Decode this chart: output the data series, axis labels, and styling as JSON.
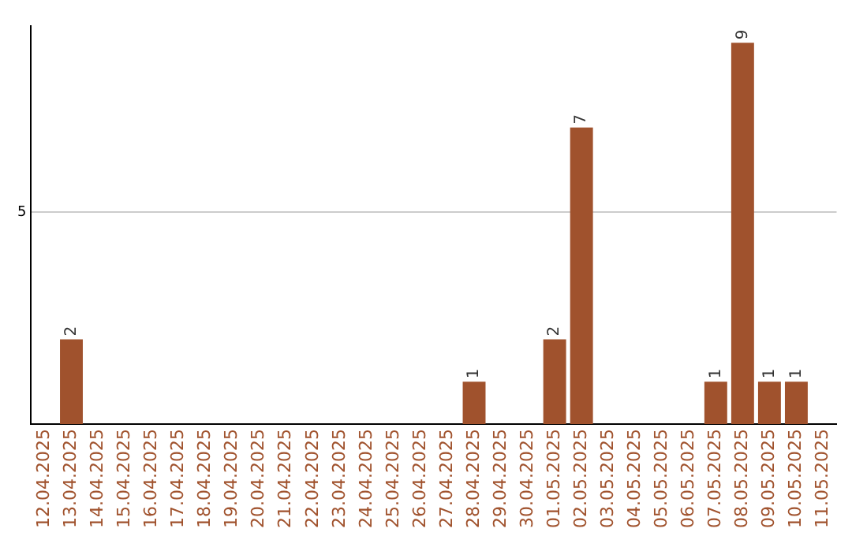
{
  "chart_data": {
    "type": "bar",
    "categories": [
      "12.04.2025",
      "13.04.2025",
      "14.04.2025",
      "15.04.2025",
      "16.04.2025",
      "17.04.2025",
      "18.04.2025",
      "19.04.2025",
      "20.04.2025",
      "21.04.2025",
      "22.04.2025",
      "23.04.2025",
      "24.04.2025",
      "25.04.2025",
      "26.04.2025",
      "27.04.2025",
      "28.04.2025",
      "29.04.2025",
      "30.04.2025",
      "01.05.2025",
      "02.05.2025",
      "03.05.2025",
      "04.05.2025",
      "05.05.2025",
      "06.05.2025",
      "07.05.2025",
      "08.05.2025",
      "09.05.2025",
      "10.05.2025",
      "11.05.2025"
    ],
    "values": [
      0,
      2,
      0,
      0,
      0,
      0,
      0,
      0,
      0,
      0,
      0,
      0,
      0,
      0,
      0,
      0,
      1,
      0,
      0,
      2,
      7,
      0,
      0,
      0,
      0,
      1,
      9,
      1,
      1,
      0
    ],
    "value_labels": [
      null,
      "2",
      null,
      null,
      null,
      null,
      null,
      null,
      null,
      null,
      null,
      null,
      null,
      null,
      null,
      null,
      "1",
      null,
      null,
      "2",
      "7",
      null,
      null,
      null,
      null,
      "1",
      "9",
      "1",
      "1",
      null
    ],
    "color": "#a0522d",
    "ylim": [
      0,
      9.4
    ],
    "yticks": [
      5
    ],
    "grid": "y",
    "legend": false
  }
}
